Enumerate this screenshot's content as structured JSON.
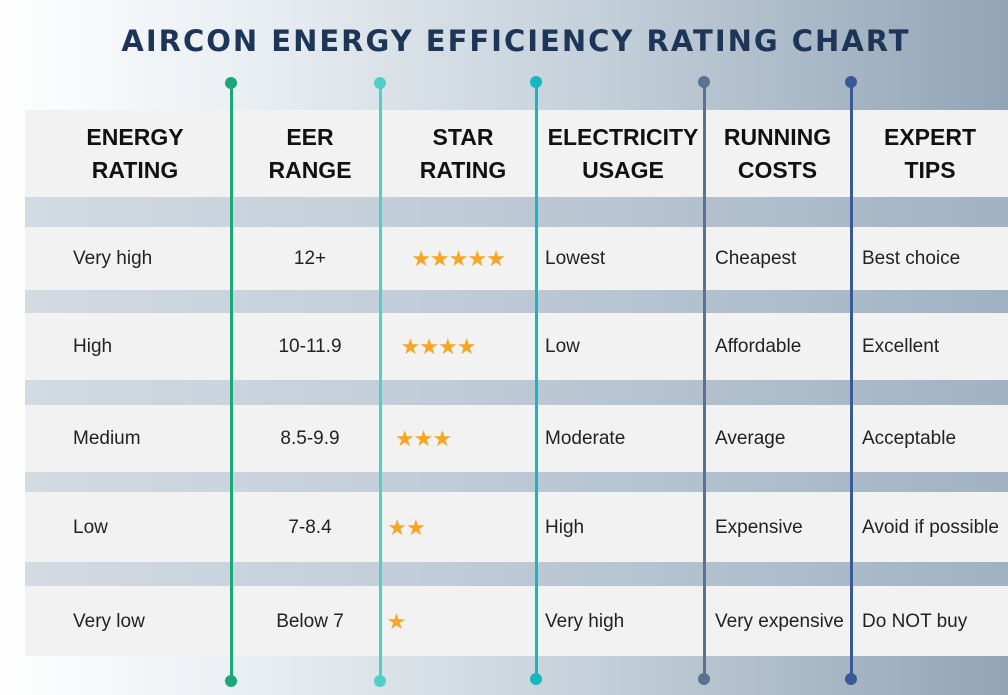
{
  "title": "AIRCON ENERGY EFFICIENCY RATING CHART",
  "headers": [
    [
      "ENERGY",
      "RATING"
    ],
    [
      "EER",
      "RANGE"
    ],
    [
      "STAR",
      "RATING"
    ],
    [
      "ELECTRICITY",
      "USAGE"
    ],
    [
      "RUNNING",
      "COSTS"
    ],
    [
      "EXPERT",
      "TIPS"
    ]
  ],
  "rows": [
    {
      "energy": "Very high",
      "eer": "12+",
      "stars": 5,
      "stars_text": "★★★★★",
      "usage": "Lowest",
      "cost": "Cheapest",
      "tip": "Best choice"
    },
    {
      "energy": "High",
      "eer": "10-11.9",
      "stars": 4,
      "stars_text": "★★★★",
      "usage": "Low",
      "cost": "Affordable",
      "tip": "Excellent"
    },
    {
      "energy": "Medium",
      "eer": "8.5-9.9",
      "stars": 3,
      "stars_text": "★★★",
      "usage": "Moderate",
      "cost": "Average",
      "tip": "Acceptable"
    },
    {
      "energy": "Low",
      "eer": "7-8.4",
      "stars": 2,
      "stars_text": "★★",
      "usage": "High",
      "cost": "Expensive",
      "tip": "Avoid if possible"
    },
    {
      "energy": "Very low",
      "eer": "Below 7",
      "stars": 1,
      "stars_text": "★",
      "usage": "Very high",
      "cost": "Very expensive",
      "tip": "Do NOT buy"
    }
  ],
  "colors": {
    "title": "#1d3557",
    "star": "#f6a623",
    "line1": "#1aa879",
    "line2": "#4fd0c4",
    "line3": "#14b8c0",
    "line4": "#5a7390",
    "line5": "#3a5a95"
  }
}
